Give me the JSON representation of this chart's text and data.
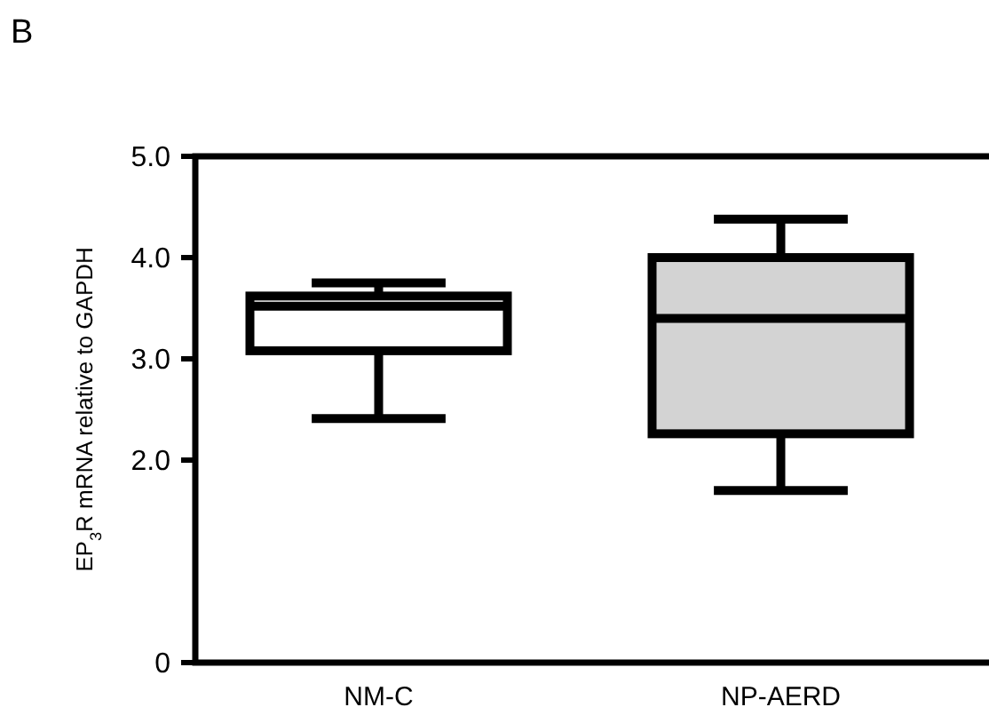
{
  "chart_data": {
    "type": "box",
    "title": "B",
    "ylabel": "EP$_{3}$R mRNA relative to GAPDH",
    "categories": [
      "NM-C",
      "NP-AERD"
    ],
    "boxes": [
      {
        "low": 2.41,
        "q1": 3.08,
        "median": 3.52,
        "q3": 3.62,
        "high": 3.75
      },
      {
        "low": 1.7,
        "q1": 2.26,
        "median": 3.4,
        "q3": 4.0,
        "high": 4.38
      }
    ],
    "colors": [
      "#ffffff",
      "#d3d3d3"
    ],
    "ylim": [
      0,
      5
    ],
    "yticks": [
      0,
      {
        "value": 2,
        "label": "2.0"
      },
      {
        "value": 3,
        "label": "3.0"
      },
      {
        "value": 4,
        "label": "4.0"
      },
      {
        "value": 5,
        "label": "5.0"
      }
    ]
  }
}
